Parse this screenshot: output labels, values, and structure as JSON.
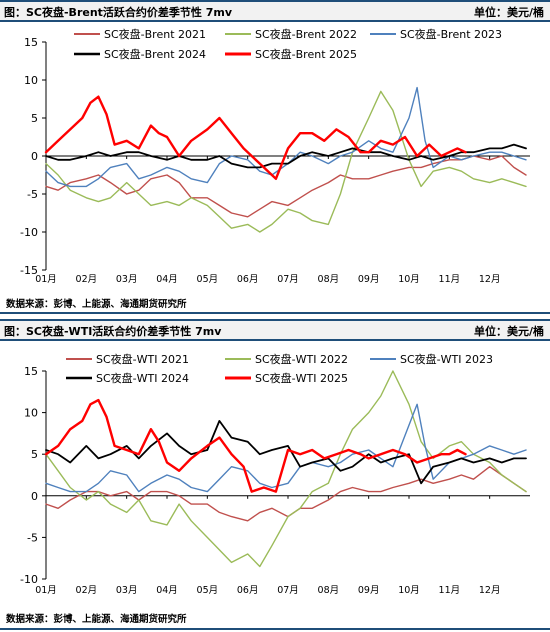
{
  "chart_data": [
    {
      "type": "line",
      "title": "图：SC夜盘-Brent活跃合约价差季节性 7mv",
      "unit_label": "单位：美元/桶",
      "source": "数据来源：彭博、上能源、海通期货研究所",
      "xlabel": "",
      "ylabel": "",
      "x_ticks": [
        "01月",
        "02月",
        "03月",
        "04月",
        "05月",
        "06月",
        "07月",
        "08月",
        "09月",
        "10月",
        "11月",
        "12月"
      ],
      "ylim": [
        -15,
        15
      ],
      "y_ticks": [
        "-15",
        "-10",
        "-5",
        "0",
        "5",
        "10",
        "15"
      ],
      "x_domain": [
        1,
        13
      ],
      "grid": false,
      "legend": "top",
      "series": [
        {
          "name": "SC夜盘-Brent 2021",
          "color": "#c0504d",
          "width": 1.4,
          "x": [
            1.0,
            1.3,
            1.6,
            2.0,
            2.3,
            2.6,
            3.0,
            3.3,
            3.6,
            4.0,
            4.3,
            4.6,
            5.0,
            5.3,
            5.6,
            6.0,
            6.3,
            6.6,
            7.0,
            7.3,
            7.6,
            8.0,
            8.3,
            8.6,
            9.0,
            9.3,
            9.6,
            10.0,
            10.3,
            10.6,
            11.0,
            11.3,
            11.6,
            12.0,
            12.3,
            12.6,
            12.9
          ],
          "y": [
            -4.0,
            -4.5,
            -3.5,
            -3.0,
            -2.5,
            -3.5,
            -5.0,
            -4.5,
            -3.0,
            -2.5,
            -3.5,
            -5.5,
            -5.5,
            -6.5,
            -7.5,
            -8.0,
            -7.0,
            -6.0,
            -6.5,
            -5.5,
            -4.5,
            -3.5,
            -2.5,
            -3.0,
            -3.0,
            -2.5,
            -2.0,
            -1.5,
            -1.5,
            -1.0,
            -0.5,
            -0.5,
            0.0,
            -0.5,
            0.0,
            -1.5,
            -2.5
          ]
        },
        {
          "name": "SC夜盘-Brent 2022",
          "color": "#9bbb59",
          "width": 1.4,
          "x": [
            1.0,
            1.3,
            1.6,
            2.0,
            2.3,
            2.6,
            3.0,
            3.3,
            3.6,
            4.0,
            4.3,
            4.6,
            5.0,
            5.3,
            5.6,
            6.0,
            6.3,
            6.6,
            7.0,
            7.3,
            7.6,
            8.0,
            8.3,
            8.6,
            9.0,
            9.3,
            9.6,
            10.0,
            10.3,
            10.6,
            11.0,
            11.3,
            11.6,
            12.0,
            12.3,
            12.6,
            12.9
          ],
          "y": [
            -1.0,
            -2.5,
            -4.5,
            -5.5,
            -6.0,
            -5.5,
            -3.5,
            -5.0,
            -6.5,
            -6.0,
            -6.5,
            -5.5,
            -6.5,
            -8.0,
            -9.5,
            -9.0,
            -10.0,
            -9.0,
            -7.0,
            -7.5,
            -8.5,
            -9.0,
            -5.0,
            0.5,
            5.0,
            8.5,
            6.0,
            -0.5,
            -4.0,
            -2.0,
            -1.5,
            -2.0,
            -3.0,
            -3.5,
            -3.0,
            -3.5,
            -4.0
          ]
        },
        {
          "name": "SC夜盘-Brent 2023",
          "color": "#4f81bd",
          "width": 1.4,
          "x": [
            1.0,
            1.3,
            1.6,
            2.0,
            2.3,
            2.6,
            3.0,
            3.3,
            3.6,
            4.0,
            4.3,
            4.6,
            5.0,
            5.3,
            5.6,
            6.0,
            6.3,
            6.6,
            7.0,
            7.3,
            7.6,
            8.0,
            8.3,
            8.6,
            9.0,
            9.3,
            9.6,
            10.0,
            10.2,
            10.4,
            10.6,
            11.0,
            11.3,
            11.6,
            12.0,
            12.3,
            12.6,
            12.9
          ],
          "y": [
            -2.0,
            -3.5,
            -4.0,
            -4.0,
            -3.0,
            -1.5,
            -1.0,
            -3.0,
            -2.5,
            -1.5,
            -2.0,
            -3.0,
            -3.5,
            -1.0,
            0.0,
            -0.5,
            -2.0,
            -2.5,
            -1.0,
            0.5,
            0.0,
            -1.0,
            0.0,
            0.5,
            2.0,
            1.0,
            0.5,
            5.0,
            9.0,
            2.0,
            -1.5,
            0.0,
            -0.5,
            0.0,
            0.5,
            0.5,
            0.0,
            -0.5
          ]
        },
        {
          "name": "SC夜盘-Brent 2024",
          "color": "#000000",
          "width": 1.8,
          "x": [
            1.0,
            1.3,
            1.6,
            2.0,
            2.3,
            2.6,
            3.0,
            3.3,
            3.6,
            4.0,
            4.3,
            4.6,
            5.0,
            5.3,
            5.6,
            6.0,
            6.3,
            6.6,
            7.0,
            7.3,
            7.6,
            8.0,
            8.3,
            8.6,
            9.0,
            9.3,
            9.6,
            10.0,
            10.3,
            10.6,
            11.0,
            11.3,
            11.6,
            12.0,
            12.3,
            12.6,
            12.9
          ],
          "y": [
            0.0,
            -0.5,
            -0.5,
            0.0,
            0.5,
            0.0,
            0.5,
            0.5,
            0.0,
            -0.5,
            0.0,
            -0.5,
            -0.5,
            0.0,
            -1.0,
            -1.5,
            -1.5,
            -1.0,
            -1.0,
            0.0,
            0.5,
            0.0,
            0.5,
            1.0,
            0.5,
            0.5,
            0.0,
            -0.5,
            0.0,
            -0.5,
            0.0,
            0.5,
            0.5,
            1.0,
            1.0,
            1.5,
            1.0
          ]
        },
        {
          "name": "SC夜盘-Brent 2025",
          "color": "#ff0000",
          "width": 2.4,
          "x": [
            1.0,
            1.3,
            1.6,
            1.9,
            2.1,
            2.3,
            2.5,
            2.7,
            3.0,
            3.3,
            3.6,
            3.8,
            4.0,
            4.3,
            4.6,
            5.0,
            5.3,
            5.6,
            5.9,
            6.1,
            6.4,
            6.7,
            7.0,
            7.3,
            7.6,
            7.9,
            8.2,
            8.5,
            8.8,
            9.0,
            9.3,
            9.6,
            9.9,
            10.2,
            10.5,
            10.8,
            11.0,
            11.2,
            11.4
          ],
          "y": [
            0.5,
            2.0,
            3.5,
            5.0,
            7.0,
            7.8,
            5.5,
            1.5,
            2.0,
            1.0,
            4.0,
            3.0,
            2.5,
            0.0,
            2.0,
            3.5,
            5.0,
            3.0,
            1.0,
            0.0,
            -1.5,
            -3.0,
            1.0,
            3.0,
            3.0,
            2.0,
            3.5,
            2.5,
            0.5,
            0.5,
            2.0,
            1.5,
            2.5,
            0.0,
            1.5,
            0.0,
            0.5,
            1.0,
            0.5
          ]
        }
      ]
    },
    {
      "type": "line",
      "title": "图：SC夜盘-WTI活跃合约价差季节性 7mv",
      "unit_label": "单位：美元/桶",
      "source": "数据来源：彭博、上能源、海通期货研究所",
      "xlabel": "",
      "ylabel": "",
      "x_ticks": [
        "01月",
        "02月",
        "03月",
        "04月",
        "05月",
        "06月",
        "07月",
        "08月",
        "09月",
        "10月",
        "11月",
        "12月"
      ],
      "ylim": [
        -10,
        15
      ],
      "y_ticks": [
        "-10",
        "-5",
        "0",
        "5",
        "10",
        "15"
      ],
      "x_domain": [
        1,
        13
      ],
      "grid": false,
      "legend": "top",
      "series": [
        {
          "name": "SC夜盘-WTI 2021",
          "color": "#c0504d",
          "width": 1.4,
          "x": [
            1.0,
            1.3,
            1.6,
            2.0,
            2.3,
            2.6,
            3.0,
            3.3,
            3.6,
            4.0,
            4.3,
            4.6,
            5.0,
            5.3,
            5.6,
            6.0,
            6.3,
            6.6,
            7.0,
            7.3,
            7.6,
            8.0,
            8.3,
            8.6,
            9.0,
            9.3,
            9.6,
            10.0,
            10.3,
            10.6,
            11.0,
            11.3,
            11.6,
            12.0,
            12.3,
            12.6,
            12.9
          ],
          "y": [
            -1.0,
            -1.5,
            -0.5,
            0.5,
            0.5,
            0.0,
            0.5,
            -0.5,
            0.5,
            0.5,
            0.0,
            -1.0,
            -1.0,
            -2.0,
            -2.5,
            -3.0,
            -2.0,
            -1.5,
            -2.5,
            -1.5,
            -1.5,
            -0.5,
            0.5,
            1.0,
            0.5,
            0.5,
            1.0,
            1.5,
            2.0,
            1.5,
            2.0,
            2.5,
            2.0,
            3.5,
            2.5,
            1.5,
            0.5
          ]
        },
        {
          "name": "SC夜盘-WTI 2022",
          "color": "#9bbb59",
          "width": 1.4,
          "x": [
            1.0,
            1.3,
            1.6,
            2.0,
            2.3,
            2.6,
            3.0,
            3.3,
            3.6,
            4.0,
            4.3,
            4.6,
            5.0,
            5.3,
            5.6,
            6.0,
            6.3,
            6.6,
            7.0,
            7.3,
            7.6,
            8.0,
            8.3,
            8.6,
            9.0,
            9.3,
            9.6,
            10.0,
            10.3,
            10.6,
            11.0,
            11.3,
            11.6,
            12.0,
            12.3,
            12.6,
            12.9
          ],
          "y": [
            5.0,
            3.0,
            1.0,
            -0.5,
            0.5,
            -1.0,
            -2.0,
            -0.5,
            -3.0,
            -3.5,
            -1.0,
            -3.0,
            -5.0,
            -6.5,
            -8.0,
            -7.0,
            -8.5,
            -6.0,
            -2.5,
            -1.5,
            0.5,
            1.5,
            5.0,
            8.0,
            10.0,
            12.0,
            15.0,
            11.0,
            6.5,
            4.5,
            6.0,
            6.5,
            5.0,
            4.0,
            2.5,
            1.5,
            0.5
          ]
        },
        {
          "name": "SC夜盘-WTI 2023",
          "color": "#4f81bd",
          "width": 1.4,
          "x": [
            1.0,
            1.3,
            1.6,
            2.0,
            2.3,
            2.6,
            3.0,
            3.3,
            3.6,
            4.0,
            4.3,
            4.6,
            5.0,
            5.3,
            5.6,
            6.0,
            6.3,
            6.6,
            7.0,
            7.3,
            7.6,
            8.0,
            8.3,
            8.6,
            9.0,
            9.3,
            9.6,
            10.0,
            10.2,
            10.4,
            10.6,
            11.0,
            11.3,
            11.6,
            12.0,
            12.3,
            12.6,
            12.9
          ],
          "y": [
            1.5,
            1.0,
            0.5,
            0.5,
            1.5,
            3.0,
            2.5,
            0.5,
            1.5,
            2.5,
            2.0,
            1.0,
            0.5,
            2.0,
            3.5,
            3.0,
            1.5,
            1.0,
            1.5,
            3.5,
            4.0,
            3.5,
            4.0,
            5.0,
            5.5,
            4.5,
            3.5,
            8.5,
            11.0,
            6.0,
            2.0,
            4.0,
            4.5,
            5.0,
            6.0,
            5.5,
            5.0,
            5.5
          ]
        },
        {
          "name": "SC夜盘-WTI 2024",
          "color": "#000000",
          "width": 1.8,
          "x": [
            1.0,
            1.3,
            1.6,
            2.0,
            2.3,
            2.6,
            3.0,
            3.3,
            3.6,
            4.0,
            4.3,
            4.6,
            5.0,
            5.3,
            5.6,
            6.0,
            6.3,
            6.6,
            7.0,
            7.3,
            7.6,
            8.0,
            8.3,
            8.6,
            9.0,
            9.3,
            9.6,
            10.0,
            10.3,
            10.6,
            11.0,
            11.3,
            11.6,
            12.0,
            12.3,
            12.6,
            12.9
          ],
          "y": [
            5.5,
            5.0,
            4.0,
            6.0,
            4.5,
            5.0,
            6.0,
            4.5,
            6.0,
            7.5,
            6.0,
            5.0,
            5.5,
            9.0,
            7.0,
            6.5,
            5.0,
            5.5,
            6.0,
            3.5,
            4.0,
            4.5,
            3.0,
            3.5,
            5.0,
            4.0,
            4.5,
            5.0,
            1.5,
            3.5,
            4.0,
            4.5,
            4.0,
            4.5,
            4.0,
            4.5,
            4.5
          ]
        },
        {
          "name": "SC夜盘-WTI 2025",
          "color": "#ff0000",
          "width": 2.4,
          "x": [
            1.0,
            1.3,
            1.6,
            1.9,
            2.1,
            2.3,
            2.5,
            2.7,
            3.0,
            3.3,
            3.6,
            3.8,
            4.0,
            4.3,
            4.6,
            5.0,
            5.3,
            5.6,
            5.9,
            6.1,
            6.4,
            6.7,
            7.0,
            7.3,
            7.6,
            7.9,
            8.2,
            8.5,
            8.8,
            9.0,
            9.3,
            9.6,
            9.9,
            10.2,
            10.5,
            10.8,
            11.0,
            11.2,
            11.4
          ],
          "y": [
            5.0,
            6.0,
            8.0,
            9.0,
            11.0,
            11.5,
            9.5,
            6.0,
            5.5,
            5.0,
            8.0,
            6.5,
            4.0,
            3.0,
            4.5,
            6.0,
            7.0,
            5.0,
            3.5,
            0.5,
            1.0,
            0.5,
            5.5,
            5.0,
            5.5,
            4.5,
            5.0,
            5.5,
            5.0,
            4.5,
            5.0,
            5.5,
            5.0,
            4.0,
            4.5,
            5.0,
            5.0,
            5.5,
            5.0
          ]
        }
      ]
    }
  ]
}
